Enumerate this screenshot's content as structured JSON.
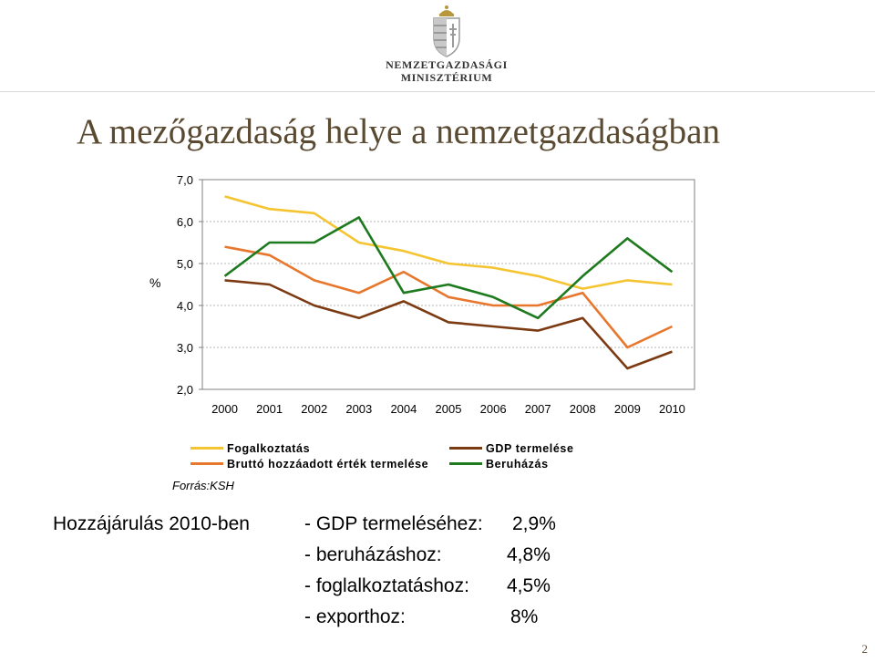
{
  "header": {
    "logo_line1": "NEMZETGAZDASÁGI",
    "logo_line2": "MINISZTÉRIUM"
  },
  "title": "A mezőgazdaság helye a nemzetgazdaságban",
  "colors": {
    "Fogalkoztatás": "#f5c431",
    "Bruttó hozzáadott érték termelése": "#e8772e",
    "GDP termelése": "#7b3a12",
    "Beruházás": "#1e7a1e",
    "title": "#5a4a32"
  },
  "chart_data": {
    "type": "line",
    "ylabel": "%",
    "ylim": [
      2.0,
      7.0
    ],
    "y_ticks": [
      "7,0",
      "6,0",
      "5,0",
      "4,0",
      "3,0",
      "2,0"
    ],
    "categories": [
      "2000",
      "2001",
      "2002",
      "2003",
      "2004",
      "2005",
      "2006",
      "2007",
      "2008",
      "2009",
      "2010"
    ],
    "series": [
      {
        "name": "Fogalkoztatás",
        "values": [
          6.6,
          6.3,
          6.2,
          5.5,
          5.3,
          5.0,
          4.9,
          4.7,
          4.4,
          4.6,
          4.5
        ]
      },
      {
        "name": "Bruttó hozzáadott érték termelése",
        "values": [
          5.4,
          5.2,
          4.6,
          4.3,
          4.8,
          4.2,
          4.0,
          4.0,
          4.3,
          3.0,
          3.5
        ]
      },
      {
        "name": "GDP termelése",
        "values": [
          4.6,
          4.5,
          4.0,
          3.7,
          4.1,
          3.6,
          3.5,
          3.4,
          3.7,
          2.5,
          2.9
        ]
      },
      {
        "name": "Beruházás",
        "values": [
          4.7,
          5.5,
          5.5,
          6.1,
          4.3,
          4.5,
          4.2,
          3.7,
          4.7,
          5.6,
          4.8
        ]
      }
    ],
    "grid": true,
    "legend": "bottom",
    "source": "Forrás:KSH"
  },
  "legend": {
    "left": [
      "Fogalkoztatás",
      "Bruttó hozzáadott érték termelése"
    ],
    "right": [
      "GDP termelése",
      "Beruházás"
    ]
  },
  "summary": {
    "heading": "Hozzájárulás 2010-ben",
    "items": [
      {
        "label": "- GDP termeléséhez:",
        "value": "2,9%"
      },
      {
        "label": "- beruházáshoz:",
        "value": "4,8%"
      },
      {
        "label": "- foglalkoztatáshoz:",
        "value": "4,5%"
      },
      {
        "label": "- exporthoz:",
        "value": "8%"
      }
    ]
  },
  "page_number": "2"
}
